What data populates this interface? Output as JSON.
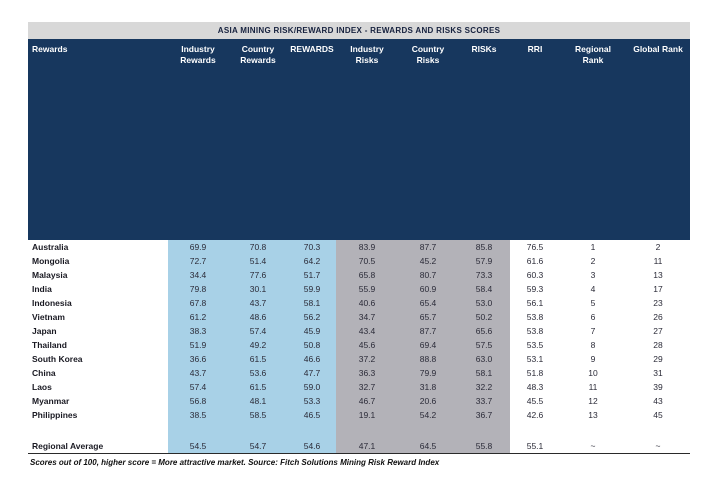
{
  "title": "ASIA MINING RISK/REWARD INDEX - REWARDS AND RISKS SCORES",
  "footnote": "Scores out of 100, higher score = More attractive market. Source: Fitch Solutions Mining Risk Reward Index",
  "colors": {
    "navy": "#17375e",
    "rewards_highlight": "#a8d1e7",
    "risks_highlight": "#b3b2b8",
    "title_bar": "#d8d8d8"
  },
  "chart_data": {
    "type": "table",
    "title": "ASIA MINING RISK/REWARD INDEX - REWARDS AND RISKS SCORES",
    "columns": [
      "Rewards",
      "Industry Rewards",
      "Country Rewards",
      "REWARDS",
      "Industry Risks",
      "Country Risks",
      "RISKs",
      "RRI",
      "Regional Rank",
      "Global Rank"
    ],
    "rows": [
      [
        "Australia",
        "69.9",
        "70.8",
        "70.3",
        "83.9",
        "87.7",
        "85.8",
        "76.5",
        "1",
        "2"
      ],
      [
        "Mongolia",
        "72.7",
        "51.4",
        "64.2",
        "70.5",
        "45.2",
        "57.9",
        "61.6",
        "2",
        "11"
      ],
      [
        "Malaysia",
        "34.4",
        "77.6",
        "51.7",
        "65.8",
        "80.7",
        "73.3",
        "60.3",
        "3",
        "13"
      ],
      [
        "India",
        "79.8",
        "30.1",
        "59.9",
        "55.9",
        "60.9",
        "58.4",
        "59.3",
        "4",
        "17"
      ],
      [
        "Indonesia",
        "67.8",
        "43.7",
        "58.1",
        "40.6",
        "65.4",
        "53.0",
        "56.1",
        "5",
        "23"
      ],
      [
        "Vietnam",
        "61.2",
        "48.6",
        "56.2",
        "34.7",
        "65.7",
        "50.2",
        "53.8",
        "6",
        "26"
      ],
      [
        "Japan",
        "38.3",
        "57.4",
        "45.9",
        "43.4",
        "87.7",
        "65.6",
        "53.8",
        "7",
        "27"
      ],
      [
        "Thailand",
        "51.9",
        "49.2",
        "50.8",
        "45.6",
        "69.4",
        "57.5",
        "53.5",
        "8",
        "28"
      ],
      [
        "South Korea",
        "36.6",
        "61.5",
        "46.6",
        "37.2",
        "88.8",
        "63.0",
        "53.1",
        "9",
        "29"
      ],
      [
        "China",
        "43.7",
        "53.6",
        "47.7",
        "36.3",
        "79.9",
        "58.1",
        "51.8",
        "10",
        "31"
      ],
      [
        "Laos",
        "57.4",
        "61.5",
        "59.0",
        "32.7",
        "31.8",
        "32.2",
        "48.3",
        "11",
        "39"
      ],
      [
        "Myanmar",
        "56.8",
        "48.1",
        "53.3",
        "46.7",
        "20.6",
        "33.7",
        "45.5",
        "12",
        "43"
      ],
      [
        "Philippines",
        "38.5",
        "58.5",
        "46.5",
        "19.1",
        "54.2",
        "36.7",
        "42.6",
        "13",
        "45"
      ]
    ],
    "summary_row": [
      "Regional Average",
      "54.5",
      "54.7",
      "54.6",
      "47.1",
      "64.5",
      "55.8",
      "55.1",
      "~",
      "~"
    ]
  }
}
